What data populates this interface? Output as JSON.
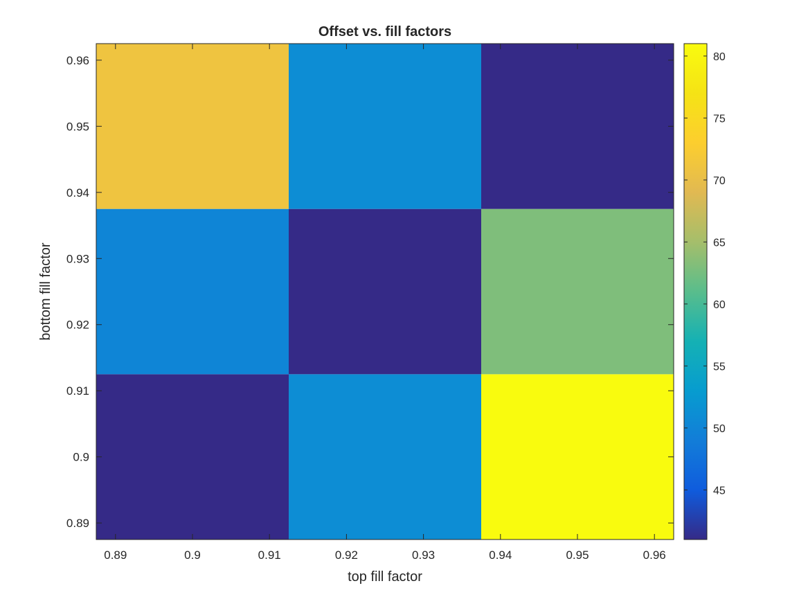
{
  "chart_data": {
    "type": "heatmap",
    "title": "Offset vs. fill factors",
    "xlabel": "top fill factor",
    "ylabel": "bottom fill factor",
    "x_centers": [
      0.9,
      0.925,
      0.95
    ],
    "y_centers": [
      0.9,
      0.925,
      0.95
    ],
    "xlim": [
      0.8875,
      0.9625
    ],
    "ylim": [
      0.8875,
      0.9625
    ],
    "xticks": [
      0.89,
      0.9,
      0.91,
      0.92,
      0.93,
      0.94,
      0.95,
      0.96
    ],
    "xtick_labels": [
      "0.89",
      "0.9",
      "0.91",
      "0.92",
      "0.93",
      "0.94",
      "0.95",
      "0.96"
    ],
    "yticks": [
      0.89,
      0.9,
      0.91,
      0.92,
      0.93,
      0.94,
      0.95,
      0.96
    ],
    "ytick_labels": [
      "0.89",
      "0.9",
      "0.91",
      "0.92",
      "0.93",
      "0.94",
      "0.95",
      "0.96"
    ],
    "values": [
      [
        41,
        51,
        81
      ],
      [
        50,
        41,
        63
      ],
      [
        71,
        51,
        41
      ]
    ],
    "colorbar": {
      "limits": [
        41,
        81
      ],
      "ticks": [
        45,
        50,
        55,
        60,
        65,
        70,
        75,
        80
      ],
      "tick_labels": [
        "45",
        "50",
        "55",
        "60",
        "65",
        "70",
        "75",
        "80"
      ],
      "colormap": "parula"
    },
    "grid": false
  }
}
